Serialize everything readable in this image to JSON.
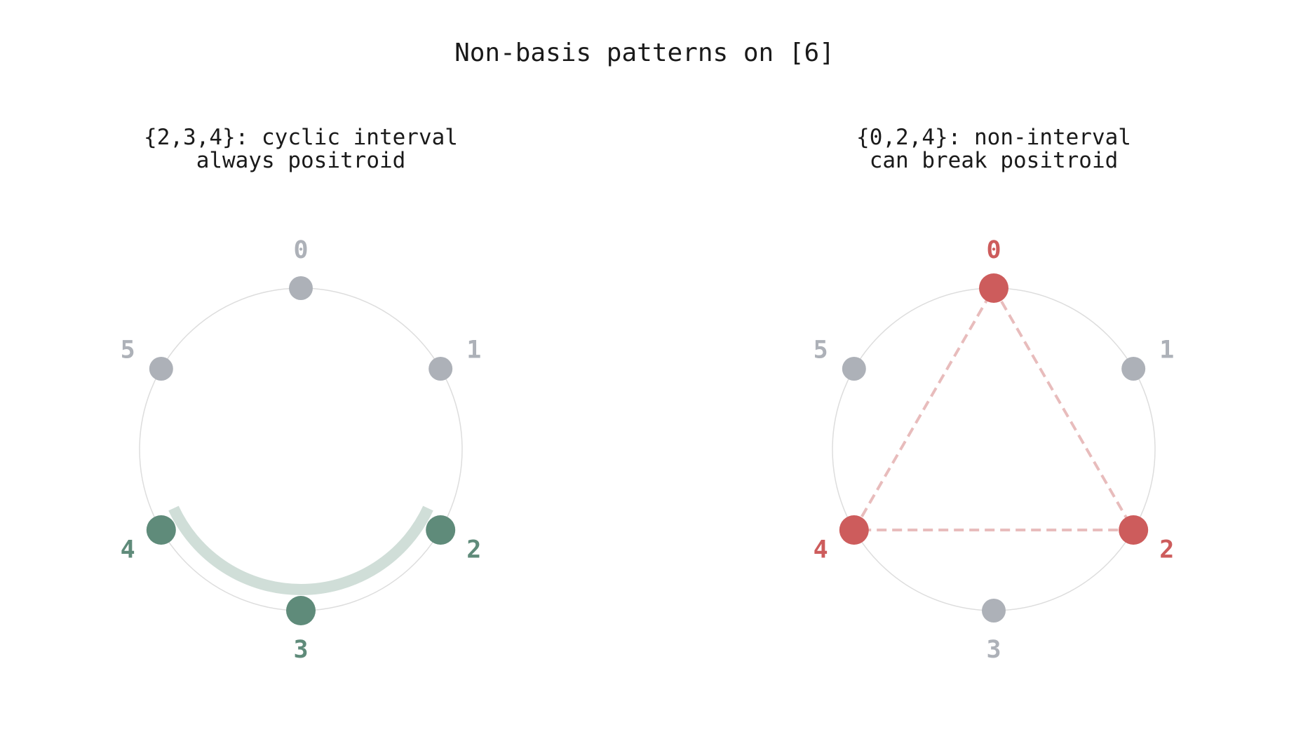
{
  "title": "Non-basis patterns on [6]",
  "colors": {
    "ring": "#dddddd",
    "inactive": "#adb1b8",
    "interval": "#5f8b7a",
    "interval_arc": "#d0ded8",
    "noninterval": "#cd5c5c",
    "noninterval_edge": "#e8bcbc",
    "text": "#1a1a1a"
  },
  "panels": [
    {
      "title_line1": "{2,3,4}: cyclic interval",
      "title_line2": "always positroid",
      "vertices": [
        "0",
        "1",
        "2",
        "3",
        "4",
        "5"
      ],
      "highlighted": [
        2,
        3,
        4
      ],
      "kind": "interval"
    },
    {
      "title_line1": "{0,2,4}: non-interval",
      "title_line2": "can break positroid",
      "vertices": [
        "0",
        "1",
        "2",
        "3",
        "4",
        "5"
      ],
      "highlighted": [
        0,
        2,
        4
      ],
      "kind": "noninterval"
    }
  ]
}
